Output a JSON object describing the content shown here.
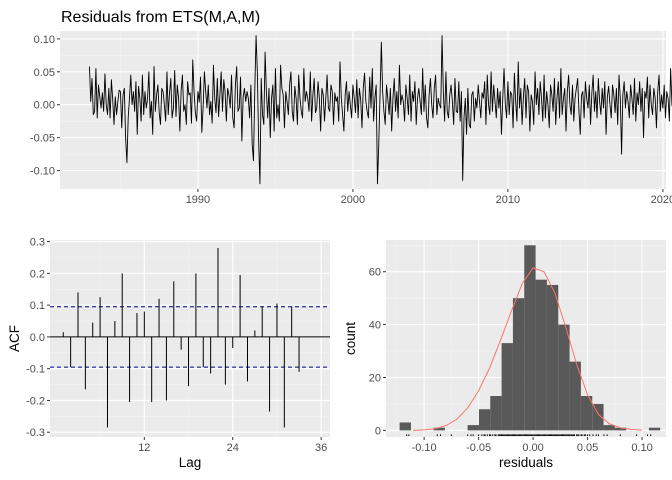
{
  "colors": {
    "panel_background": "#ebebeb",
    "grid_major": "#ffffff",
    "grid_minor": "#f4f4f4",
    "series_line": "#000000",
    "confidence_line": "#00008b",
    "histogram_fill": "#595959",
    "density_curve": "#f8766d",
    "tick_text": "#4d4d4d"
  },
  "chart_data": [
    {
      "id": "residual-series",
      "type": "line",
      "title": "Residuals from ETS(M,A,M)",
      "xlabel": "",
      "ylabel": "",
      "xlim": [
        1981.1,
        2020.2
      ],
      "ylim": [
        -0.128,
        0.112
      ],
      "xticks": [
        1990,
        2000,
        2010,
        2020
      ],
      "xtick_labels": [
        "1990",
        "2000",
        "2010",
        "2020"
      ],
      "yticks": [
        -0.1,
        -0.05,
        0.0,
        0.05,
        0.1
      ],
      "ytick_labels": [
        "-0.10",
        "-0.05",
        "0.00",
        "0.05",
        "0.10"
      ],
      "grid": true,
      "x_start": 1983.0,
      "x_step": 0.0833333,
      "values": [
        0.058,
        0.005,
        0.04,
        -0.015,
        -0.01,
        0.055,
        -0.02,
        0.03,
        0.012,
        -0.005,
        0.018,
        -0.01,
        0.047,
        0.0,
        -0.015,
        0.025,
        -0.02,
        0.038,
        0.008,
        -0.03,
        0.012,
        -0.015,
        0.005,
        0.022,
        0.02,
        -0.035,
        0.015,
        0.025,
        -0.05,
        -0.088,
        -0.02,
        0.01,
        0.045,
        0.0,
        0.02,
        -0.01,
        0.035,
        -0.045,
        0.028,
        0.01,
        -0.025,
        0.045,
        -0.015,
        0.02,
        -0.005,
        0.01,
        0.05,
        -0.02,
        0.005,
        -0.045,
        0.058,
        -0.01,
        0.015,
        0.03,
        -0.012,
        -0.03,
        0.025,
        0.02,
        0.0,
        -0.025,
        0.05,
        -0.015,
        0.018,
        0.04,
        -0.02,
        -0.005,
        0.052,
        -0.018,
        0.03,
        0.01,
        -0.04,
        0.022,
        0.045,
        -0.01,
        0.0,
        -0.03,
        0.035,
        0.015,
        0.018,
        -0.028,
        0.068,
        0.02,
        -0.012,
        -0.025,
        0.02,
        0.004,
        0.042,
        -0.042,
        -0.005,
        0.05,
        0.02,
        -0.005,
        0.03,
        -0.015,
        0.005,
        -0.028,
        0.06,
        0.01,
        -0.012,
        0.04,
        -0.018,
        0.015,
        0.05,
        -0.01,
        0.038,
        0.02,
        -0.025,
        0.025,
        0.015,
        -0.005,
        0.045,
        -0.02,
        -0.035,
        0.03,
        0.058,
        -0.01,
        -0.005,
        0.042,
        -0.055,
        0.012,
        0.025,
        0.005,
        0.02,
        0.01,
        -0.02,
        0.03,
        -0.06,
        -0.085,
        0.02,
        0.105,
        0.05,
        -0.055,
        -0.12,
        0.04,
        -0.015,
        -0.03,
        0.08,
        0.02,
        -0.02,
        0.025,
        -0.05,
        0.01,
        0.03,
        -0.04,
        0.055,
        -0.02,
        0.0,
        -0.025,
        0.06,
        0.025,
        0.015,
        -0.035,
        0.02,
        0.005,
        -0.015,
        0.03,
        0.05,
        -0.01,
        -0.025,
        0.028,
        0.01,
        -0.03,
        0.045,
        0.01,
        -0.01,
        -0.02,
        0.055,
        0.005,
        0.02,
        0.01,
        -0.01,
        0.05,
        -0.025,
        0.015,
        0.04,
        -0.012,
        -0.005,
        0.035,
        0.01,
        -0.04,
        0.025,
        0.015,
        -0.025,
        0.01,
        0.045,
        -0.005,
        -0.01,
        0.03,
        0.02,
        -0.03,
        0.018,
        0.005,
        0.012,
        -0.025,
        0.065,
        0.01,
        -0.015,
        -0.04,
        0.015,
        0.035,
        -0.01,
        0.02,
        0.0,
        -0.02,
        0.03,
        0.01,
        -0.012,
        0.038,
        -0.02,
        0.025,
        0.008,
        -0.035,
        0.025,
        0.048,
        0.005,
        -0.01,
        -0.02,
        0.042,
        -0.005,
        0.055,
        -0.025,
        0.01,
        0.03,
        -0.12,
        -0.06,
        0.015,
        0.095,
        0.02,
        -0.01,
        -0.03,
        0.03,
        0.01,
        -0.015,
        0.025,
        -0.04,
        0.01,
        0.04,
        -0.01,
        0.02,
        -0.02,
        0.06,
        0.0,
        0.015,
        0.005,
        -0.025,
        0.03,
        0.01,
        -0.015,
        0.045,
        -0.025,
        0.02,
        0.005,
        0.035,
        -0.03,
        0.01,
        0.025,
        0.005,
        -0.015,
        0.055,
        -0.01,
        0.03,
        -0.02,
        -0.035,
        0.015,
        0.04,
        0.0,
        -0.02,
        0.025,
        0.045,
        -0.015,
        0.01,
        0.0,
        -0.005,
        0.105,
        0.02,
        -0.025,
        0.05,
        -0.01,
        -0.02,
        0.015,
        0.03,
        0.005,
        -0.03,
        0.04,
        -0.01,
        -0.012,
        0.035,
        -0.025,
        0.02,
        -0.115,
        -0.02,
        0.01,
        -0.045,
        0.025,
        -0.03,
        -0.035,
        0.015,
        0.02,
        -0.025,
        0.01,
        -0.005,
        0.03,
        0.005,
        -0.02,
        0.018,
        0.01,
        0.035,
        -0.03,
        0.045,
        0.0,
        -0.015,
        0.05,
        -0.01,
        0.03,
        0.005,
        -0.02,
        0.025,
        -0.005,
        0.02,
        -0.045,
        0.01,
        0.055,
        0.0,
        -0.02,
        0.035,
        -0.015,
        0.02,
        0.015,
        -0.035,
        0.048,
        0.005,
        -0.025,
        0.065,
        -0.005,
        0.025,
        -0.03,
        0.012,
        0.04,
        -0.02,
        0.03,
        0.02,
        -0.04,
        0.015,
        0.005,
        -0.03,
        0.05,
        0.0,
        0.025,
        -0.015,
        0.035,
        0.01,
        -0.025,
        0.045,
        -0.02,
        0.02,
        0.0,
        -0.035,
        0.03,
        0.015,
        -0.01,
        0.04,
        -0.03,
        0.01,
        0.035,
        -0.02,
        0.055,
        -0.015,
        0.01,
        0.025,
        -0.04,
        0.02,
        0.045,
        0.0,
        -0.015,
        0.03,
        -0.025,
        0.01,
        0.025,
        0.04,
        -0.01,
        -0.045,
        0.015,
        0.02,
        -0.02,
        0.035,
        0.01,
        -0.005,
        0.03,
        -0.03,
        0.018,
        0.045,
        -0.01,
        0.02,
        -0.02,
        0.04,
        0.005,
        -0.015,
        0.025,
        -0.005,
        0.035,
        -0.045,
        0.012,
        0.028,
        0.0,
        -0.02,
        0.03,
        0.015,
        -0.012,
        0.025,
        -0.03,
        0.045,
        0.01,
        -0.075,
        0.015,
        0.035,
        -0.005,
        0.02,
        0.005,
        -0.02,
        0.03,
        0.01,
        -0.015,
        0.04,
        -0.025,
        0.018,
        0.0,
        0.035,
        -0.01,
        0.025,
        -0.05,
        0.02,
        0.01,
        0.042,
        -0.02,
        0.03,
        0.0,
        -0.015,
        0.025,
        0.01,
        -0.035,
        0.02,
        0.045,
        -0.01,
        0.015,
        -0.005,
        0.03,
        -0.02,
        0.02,
        0.01,
        -0.025,
        0.055,
        0.0,
        -0.01,
        0.025,
        -0.03,
        0.015,
        0.035,
        -0.005,
        0.02,
        -0.02,
        0.01,
        0.04,
        -0.015,
        0.025,
        0.005,
        -0.035,
        0.02,
        0.03,
        -0.01,
        0.015,
        0.0,
        -0.025,
        0.035,
        0.01,
        -0.005,
        0.025,
        0.005,
        -0.02,
        0.03,
        0.012,
        -0.015,
        0.02,
        0.008,
        -0.01,
        0.022,
        0.015,
        -0.02,
        0.025,
        -0.005,
        0.018,
        -0.012,
        0.03,
        0.01,
        0.0,
        -0.025,
        0.028,
        0.02,
        -0.008,
        0.015,
        0.025,
        -0.015,
        0.018,
        0.005,
        0.012,
        -0.03
      ]
    },
    {
      "id": "acf",
      "type": "bar",
      "title": "",
      "xlabel": "Lag",
      "ylabel": "ACF",
      "xlim": [
        -0.8,
        37.2
      ],
      "ylim": [
        -0.315,
        0.305
      ],
      "xticks": [
        12,
        24,
        36
      ],
      "xtick_labels": [
        "12",
        "24",
        "36"
      ],
      "yticks": [
        -0.3,
        -0.2,
        -0.1,
        0.0,
        0.1,
        0.2,
        0.3
      ],
      "ytick_labels": [
        "-0.3",
        "-0.2",
        "-0.1",
        "0.0",
        "0.1",
        "0.2",
        "0.3"
      ],
      "grid": true,
      "lags": [
        1,
        2,
        3,
        4,
        5,
        6,
        7,
        8,
        9,
        10,
        11,
        12,
        13,
        14,
        15,
        16,
        17,
        18,
        19,
        20,
        21,
        22,
        23,
        24,
        25,
        26,
        27,
        28,
        29,
        30,
        31,
        32,
        33,
        34,
        35,
        36
      ],
      "values": [
        0.015,
        -0.095,
        0.14,
        -0.165,
        0.045,
        0.125,
        -0.285,
        0.05,
        0.2,
        -0.205,
        0.075,
        0.08,
        -0.205,
        0.12,
        -0.2,
        0.175,
        -0.04,
        -0.155,
        0.2,
        -0.095,
        -0.115,
        0.28,
        -0.15,
        -0.035,
        0.195,
        -0.14,
        0.02,
        0.095,
        -0.235,
        0.105,
        -0.285,
        0.095,
        -0.11,
        0.0,
        0.0,
        0.0
      ],
      "confidence_bound": 0.095
    },
    {
      "id": "residual-histogram",
      "type": "bar",
      "title": "",
      "xlabel": "residuals",
      "ylabel": "count",
      "xlim": [
        -0.135,
        0.122
      ],
      "ylim": [
        -2.5,
        72
      ],
      "xticks": [
        -0.1,
        -0.05,
        0.0,
        0.05,
        0.1
      ],
      "xtick_labels": [
        "-0.10",
        "-0.05",
        "0.00",
        "0.05",
        "0.10"
      ],
      "yticks": [
        0,
        20,
        40,
        60
      ],
      "ytick_labels": [
        "0",
        "20",
        "40",
        "60"
      ],
      "grid": true,
      "bin_edges": [
        -0.1225,
        -0.1121,
        -0.1017,
        -0.0913,
        -0.0809,
        -0.0705,
        -0.0601,
        -0.0497,
        -0.0393,
        -0.0289,
        -0.0185,
        -0.0081,
        0.0023,
        0.0127,
        0.0231,
        0.0335,
        0.0439,
        0.0543,
        0.0647,
        0.0751,
        0.0855,
        0.0959,
        0.1063,
        0.1167
      ],
      "counts": [
        3,
        0,
        0,
        1,
        0,
        0,
        2,
        8,
        13,
        33,
        50,
        70,
        57,
        55,
        40,
        26,
        13,
        10,
        2,
        1,
        0,
        0,
        1
      ],
      "density_x": [
        -0.11,
        -0.1,
        -0.09,
        -0.08,
        -0.07,
        -0.06,
        -0.05,
        -0.04,
        -0.03,
        -0.02,
        -0.01,
        0.0,
        0.01,
        0.02,
        0.03,
        0.04,
        0.05,
        0.06,
        0.07,
        0.08,
        0.09,
        0.1
      ],
      "density_y": [
        0.0,
        0.2,
        0.6,
        1.8,
        4.2,
        8.5,
        15.0,
        23.5,
        34.0,
        45.0,
        55.5,
        61.5,
        60.0,
        52.0,
        39.0,
        25.0,
        13.5,
        6.0,
        2.5,
        1.0,
        0.4,
        0.1
      ],
      "rug": [
        -0.116,
        -0.114,
        -0.088,
        -0.085,
        -0.075,
        -0.06,
        -0.057,
        -0.055,
        -0.05,
        -0.047,
        -0.045,
        -0.044,
        -0.042,
        -0.04,
        -0.039,
        -0.037,
        -0.035,
        -0.034,
        -0.032,
        -0.031,
        -0.03,
        -0.029,
        -0.028,
        -0.027,
        -0.026,
        -0.025,
        -0.024,
        -0.023,
        -0.022,
        -0.021,
        -0.02,
        -0.019,
        -0.018,
        -0.017,
        -0.016,
        -0.015,
        -0.014,
        -0.013,
        -0.012,
        -0.011,
        -0.01,
        -0.009,
        -0.008,
        -0.007,
        -0.006,
        -0.005,
        -0.004,
        -0.003,
        -0.002,
        -0.001,
        0.0,
        0.001,
        0.002,
        0.003,
        0.004,
        0.005,
        0.006,
        0.007,
        0.008,
        0.009,
        0.01,
        0.011,
        0.012,
        0.013,
        0.014,
        0.015,
        0.016,
        0.017,
        0.018,
        0.019,
        0.02,
        0.021,
        0.022,
        0.023,
        0.024,
        0.025,
        0.026,
        0.027,
        0.028,
        0.029,
        0.03,
        0.031,
        0.032,
        0.033,
        0.034,
        0.035,
        0.036,
        0.037,
        0.038,
        0.04,
        0.041,
        0.042,
        0.044,
        0.045,
        0.047,
        0.048,
        0.05,
        0.052,
        0.055,
        0.058,
        0.06,
        0.065,
        0.068,
        0.08,
        0.095,
        0.105,
        0.108
      ]
    }
  ]
}
